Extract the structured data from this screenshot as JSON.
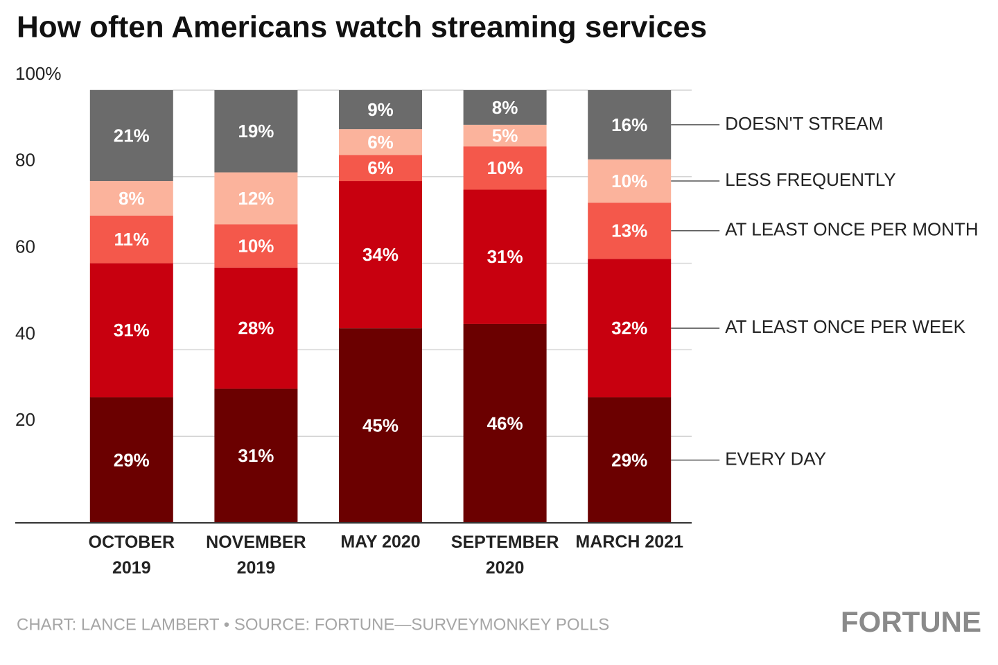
{
  "chart_data": {
    "type": "stacked_bar",
    "title": "How often Americans watch streaming services",
    "categories": [
      "OCTOBER 2019",
      "NOVEMBER 2019",
      "MAY 2020",
      "SEPTEMBER 2020",
      "MARCH 2021"
    ],
    "series": [
      {
        "name": "EVERY DAY",
        "color": "#6b0000",
        "values": [
          29,
          31,
          45,
          46,
          29
        ],
        "value_labels": [
          "29%",
          "31%",
          "45%",
          "46%",
          "29%"
        ]
      },
      {
        "name": "AT LEAST ONCE PER WEEK",
        "color": "#c8000f",
        "values": [
          31,
          28,
          34,
          31,
          32
        ],
        "value_labels": [
          "31%",
          "28%",
          "34%",
          "31%",
          "32%"
        ]
      },
      {
        "name": "AT LEAST ONCE PER MONTH",
        "color": "#f4584b",
        "values": [
          11,
          10,
          6,
          10,
          13
        ],
        "value_labels": [
          "11%",
          "10%",
          "6%",
          "10%",
          "13%"
        ]
      },
      {
        "name": "LESS FREQUENTLY",
        "color": "#fbb39c",
        "values": [
          8,
          12,
          6,
          5,
          10
        ],
        "value_labels": [
          "8%",
          "12%",
          "6%",
          "5%",
          "10%"
        ]
      },
      {
        "name": "DOESN'T STREAM",
        "color": "#6b6b6b",
        "values": [
          21,
          19,
          9,
          8,
          16
        ],
        "value_labels": [
          "21%",
          "19%",
          "9%",
          "8%",
          "16%"
        ]
      }
    ],
    "ylim": [
      0,
      100
    ],
    "yticks": [
      20,
      40,
      60,
      80,
      {
        "value": 100,
        "label": "100%"
      }
    ],
    "grid": true,
    "legend": "right",
    "source": "CHART: LANCE LAMBERT • SOURCE: FORTUNE—SURVEYMONKEY POLLS",
    "brand": "FORTUNE"
  }
}
